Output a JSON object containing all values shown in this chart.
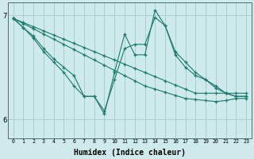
{
  "bg_color": "#ceeaea",
  "grid_color": "#aacece",
  "line_color": "#1a7a6e",
  "xlabel": "Humidex (Indice chaleur)",
  "xlabel_fontsize": 7,
  "ylim": [
    5.82,
    7.12
  ],
  "xlim": [
    -0.5,
    23.5
  ],
  "yticks": [
    6,
    7
  ],
  "series": [
    {
      "x": [
        0,
        1,
        2,
        3,
        4,
        5,
        6,
        7,
        8,
        9,
        10,
        11,
        12,
        13,
        14,
        15,
        16,
        17,
        18,
        19,
        20,
        21,
        22,
        23
      ],
      "y": [
        6.97,
        6.93,
        6.89,
        6.85,
        6.81,
        6.77,
        6.73,
        6.69,
        6.65,
        6.61,
        6.57,
        6.53,
        6.49,
        6.45,
        6.41,
        6.37,
        6.33,
        6.29,
        6.25,
        6.25,
        6.25,
        6.25,
        6.25,
        6.25
      ]
    },
    {
      "x": [
        0,
        1,
        2,
        3,
        4,
        5,
        6,
        7,
        8,
        9,
        10,
        11,
        12,
        13,
        14,
        15,
        16,
        17,
        18,
        19,
        20,
        21,
        22,
        23
      ],
      "y": [
        6.97,
        6.92,
        6.87,
        6.82,
        6.77,
        6.72,
        6.67,
        6.62,
        6.57,
        6.52,
        6.47,
        6.42,
        6.37,
        6.32,
        6.29,
        6.26,
        6.23,
        6.2,
        6.19,
        6.18,
        6.17,
        6.18,
        6.2,
        6.2
      ]
    },
    {
      "x": [
        0,
        1,
        2,
        3,
        4,
        5,
        6,
        7,
        8,
        9,
        10,
        11,
        12,
        13,
        14,
        15,
        16,
        17,
        18,
        19,
        20,
        21,
        22,
        23
      ],
      "y": [
        6.97,
        6.88,
        6.8,
        6.68,
        6.58,
        6.5,
        6.42,
        6.22,
        6.22,
        6.08,
        6.38,
        6.68,
        6.72,
        6.72,
        6.98,
        6.9,
        6.65,
        6.55,
        6.45,
        6.38,
        6.3,
        6.25,
        6.22,
        6.22
      ]
    },
    {
      "x": [
        0,
        1,
        2,
        3,
        4,
        5,
        6,
        7,
        8,
        9,
        10,
        11,
        12,
        13,
        14,
        15,
        16,
        17,
        18,
        19,
        20,
        21,
        22,
        23
      ],
      "y": [
        6.97,
        6.88,
        6.78,
        6.65,
        6.55,
        6.45,
        6.32,
        6.22,
        6.22,
        6.05,
        6.45,
        6.82,
        6.62,
        6.62,
        7.05,
        6.9,
        6.62,
        6.5,
        6.42,
        6.38,
        6.32,
        6.25,
        6.22,
        6.22
      ]
    }
  ]
}
